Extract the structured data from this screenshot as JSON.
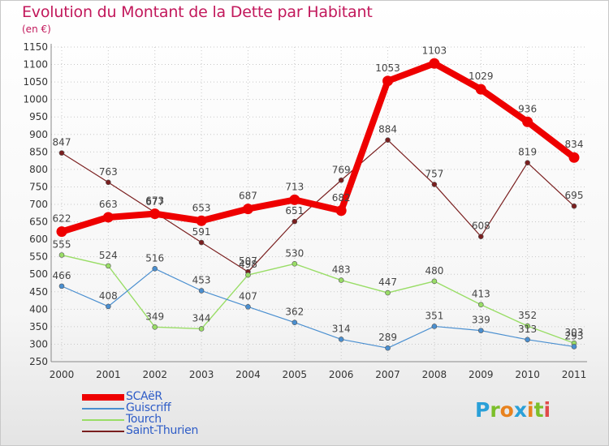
{
  "title": "Evolution du Montant de la Dette par Habitant",
  "subtitle": "(en €)",
  "logo_text": "Proxiti",
  "logo_colors": [
    "#2aa0d8",
    "#7cbf2a",
    "#e8821e",
    "#2aa0d8",
    "#e8821e",
    "#7cbf2a",
    "#e04a4a"
  ],
  "chart_data": {
    "type": "line",
    "x": [
      "2000",
      "2001",
      "2002",
      "2003",
      "2004",
      "2005",
      "2006",
      "2007",
      "2008",
      "2009",
      "2010",
      "2011"
    ],
    "ylim": [
      250,
      1150
    ],
    "yticks": [
      250,
      300,
      350,
      400,
      450,
      500,
      550,
      600,
      650,
      700,
      750,
      800,
      850,
      900,
      950,
      1000,
      1050,
      1100,
      1150
    ],
    "grid": true,
    "legend_position": "bottom-left",
    "series": [
      {
        "name": "Saint-Thurien",
        "color": "#7a1f1f",
        "width": 1.2,
        "values": [
          847,
          763,
          677,
          591,
          507,
          651,
          769,
          884,
          757,
          608,
          819,
          695
        ]
      },
      {
        "name": "Tourch",
        "color": "#99dd66",
        "width": 1.4,
        "values": [
          555,
          524,
          349,
          344,
          498,
          530,
          483,
          447,
          480,
          413,
          352,
          303
        ]
      },
      {
        "name": "Guiscriff",
        "color": "#4a8fd0",
        "width": 1.2,
        "values": [
          466,
          408,
          516,
          453,
          407,
          362,
          314,
          289,
          351,
          339,
          313,
          293
        ]
      },
      {
        "name": "SCAëR",
        "color": "#ee0000",
        "width": 8,
        "values": [
          622,
          663,
          673,
          653,
          687,
          713,
          682,
          1053,
          1103,
          1029,
          936,
          834
        ]
      }
    ],
    "legend_order": [
      "SCAëR",
      "Guiscriff",
      "Tourch",
      "Saint-Thurien"
    ]
  }
}
